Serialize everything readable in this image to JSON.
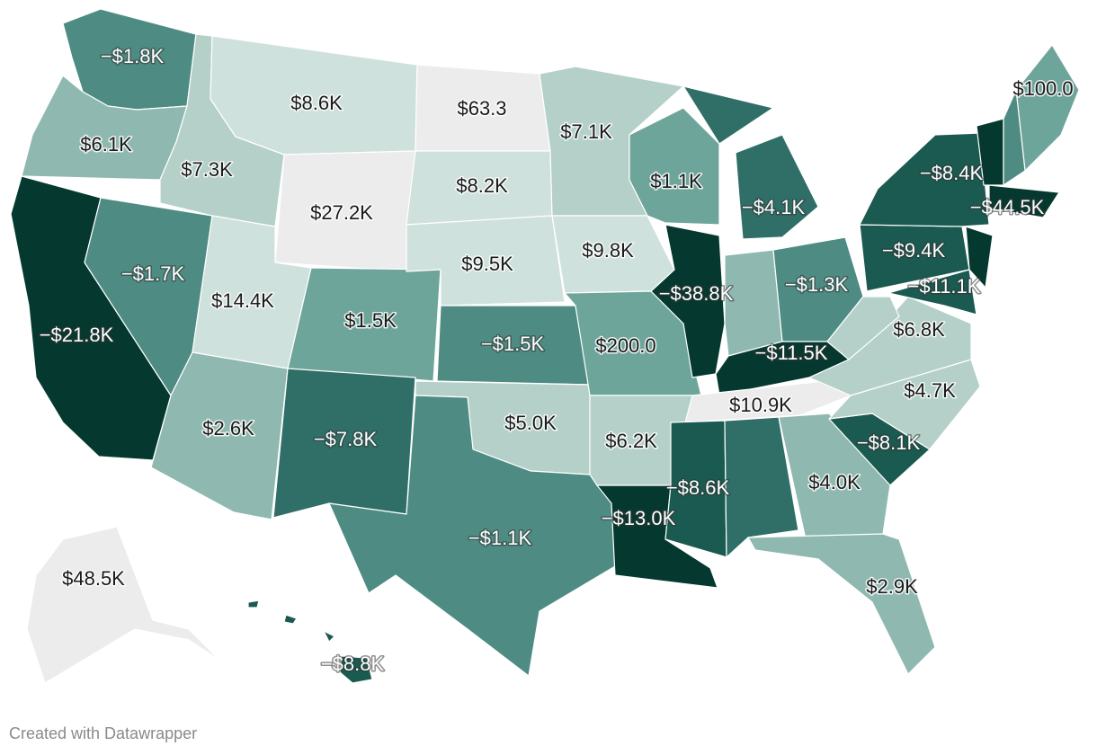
{
  "credit": "Created with Datawrapper",
  "chart_data": {
    "type": "choropleth",
    "colors": {
      "c0": "#ececec",
      "c1": "#cfe1dc",
      "c2": "#b4d0c9",
      "c3": "#8fb9b0",
      "c4": "#6ea59b",
      "c5": "#4e8c83",
      "c6": "#2f6f68",
      "c7": "#1a5a50",
      "c8": "#05392f",
      "border": "#ffffff"
    },
    "states": [
      {
        "state": "Washington",
        "label": "−$1.8K",
        "value": -1800
      },
      {
        "state": "Oregon",
        "label": "$6.1K",
        "value": 6100
      },
      {
        "state": "California",
        "label": "−$21.8K",
        "value": -21800
      },
      {
        "state": "Nevada",
        "label": "−$1.7K",
        "value": -1700
      },
      {
        "state": "Idaho",
        "label": "$7.3K",
        "value": 7300
      },
      {
        "state": "Montana",
        "label": "$8.6K",
        "value": 8600
      },
      {
        "state": "Wyoming",
        "label": "$27.2K",
        "value": 27200
      },
      {
        "state": "Utah",
        "label": "$14.4K",
        "value": 14400
      },
      {
        "state": "Arizona",
        "label": "$2.6K",
        "value": 2600
      },
      {
        "state": "Colorado",
        "label": "$1.5K",
        "value": 1500
      },
      {
        "state": "New Mexico",
        "label": "−$7.8K",
        "value": -7800
      },
      {
        "state": "North Dakota",
        "label": "$63.3",
        "value": 63.3
      },
      {
        "state": "South Dakota",
        "label": "$8.2K",
        "value": 8200
      },
      {
        "state": "Nebraska",
        "label": "$9.5K",
        "value": 9500
      },
      {
        "state": "Kansas",
        "label": "−$1.5K",
        "value": -1500
      },
      {
        "state": "Oklahoma",
        "label": "$5.0K",
        "value": 5000
      },
      {
        "state": "Texas",
        "label": "−$1.1K",
        "value": -1100
      },
      {
        "state": "Minnesota",
        "label": "$7.1K",
        "value": 7100
      },
      {
        "state": "Iowa",
        "label": "$9.8K",
        "value": 9800
      },
      {
        "state": "Missouri",
        "label": "$200.0",
        "value": 200
      },
      {
        "state": "Arkansas",
        "label": "$6.2K",
        "value": 6200
      },
      {
        "state": "Louisiana",
        "label": "−$13.0K",
        "value": -13000
      },
      {
        "state": "Wisconsin",
        "label": "$1.1K",
        "value": 1100
      },
      {
        "state": "Illinois",
        "label": "−$38.8K",
        "value": -38800
      },
      {
        "state": "Michigan",
        "label": "−$4.1K",
        "value": -4100
      },
      {
        "state": "Indiana",
        "label": "",
        "value": null
      },
      {
        "state": "Ohio",
        "label": "−$1.3K",
        "value": -1300
      },
      {
        "state": "Kentucky",
        "label": "−$11.5K",
        "value": -11500
      },
      {
        "state": "Tennessee",
        "label": "$10.9K",
        "value": 10900
      },
      {
        "state": "Mississippi",
        "label": "−$8.6K",
        "value": -8600
      },
      {
        "state": "Alabama",
        "label": "",
        "value": null
      },
      {
        "state": "Georgia",
        "label": "$4.0K",
        "value": 4000
      },
      {
        "state": "Florida",
        "label": "$2.9K",
        "value": 2900
      },
      {
        "state": "South Carolina",
        "label": "−$8.1K",
        "value": -8100
      },
      {
        "state": "North Carolina",
        "label": "$4.7K",
        "value": 4700
      },
      {
        "state": "Virginia",
        "label": "$6.8K",
        "value": 6800
      },
      {
        "state": "West Virginia",
        "label": "",
        "value": null
      },
      {
        "state": "Pennsylvania",
        "label": "−$9.4K",
        "value": -9400
      },
      {
        "state": "New York",
        "label": "−$8.4K",
        "value": -8400
      },
      {
        "state": "Maryland",
        "label": "−$11.1K",
        "value": -11100
      },
      {
        "state": "Massachusetts",
        "label": "−$44.5K",
        "value": -44500
      },
      {
        "state": "Maine",
        "label": "$100.0",
        "value": 100
      },
      {
        "state": "Alaska",
        "label": "$48.5K",
        "value": 48500
      },
      {
        "state": "Hawaii",
        "label": "−$8.8K",
        "value": -8800
      }
    ]
  }
}
